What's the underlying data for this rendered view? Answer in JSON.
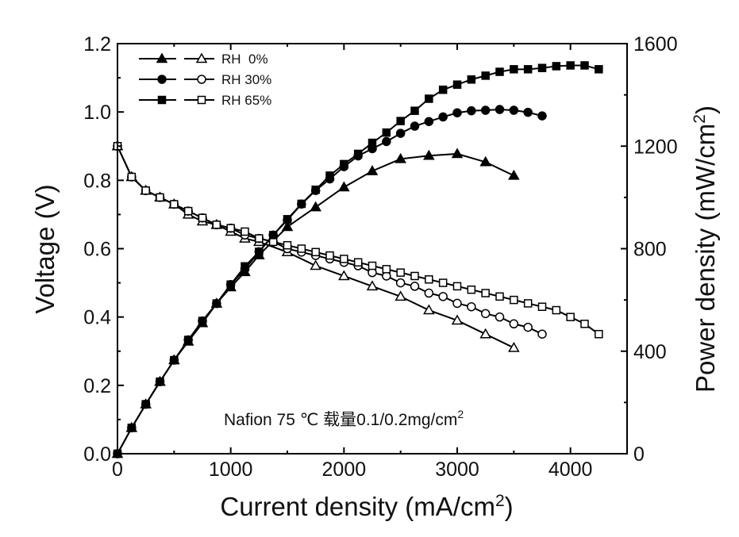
{
  "chart_data": {
    "type": "line",
    "xlabel": "Current density (mA/cm",
    "xlabel_sup": "2",
    "xlabel_end": ")",
    "ylabel": "Voltage (V)",
    "y2label": "Power density (mW/cm",
    "y2label_sup": "2",
    "y2label_end": ")",
    "xlim": [
      0,
      4500
    ],
    "ylim": [
      0,
      1.2
    ],
    "y2lim": [
      0,
      1600
    ],
    "x_ticks": [
      0,
      1000,
      2000,
      3000,
      4000
    ],
    "x_tick_labels": [
      "0",
      "1000",
      "2000",
      "3000",
      "4000"
    ],
    "y_ticks": [
      0.0,
      0.2,
      0.4,
      0.6,
      0.8,
      1.0,
      1.2
    ],
    "y_tick_labels": [
      "0.0",
      "0.2",
      "0.4",
      "0.6",
      "0.8",
      "1.0",
      "1.2"
    ],
    "y2_ticks": [
      0,
      400,
      800,
      1200,
      1600
    ],
    "y2_tick_labels": [
      "0",
      "400",
      "800",
      "1200",
      "1600"
    ],
    "grid": false,
    "legend_position": "top-left",
    "annotation": {
      "main": "Nafion 75 ℃ 载量0.1/0.2mg/cm",
      "sup": "2"
    },
    "series": [
      {
        "name": "RH  0%",
        "marker": "triangle",
        "x": [
          0,
          125,
          250,
          375,
          500,
          625,
          750,
          875,
          1000,
          1125,
          1250,
          1500,
          1750,
          2000,
          2250,
          2500,
          2750,
          3000,
          3250,
          3500
        ],
        "voltage": [
          0.9,
          0.81,
          0.77,
          0.75,
          0.73,
          0.7,
          0.68,
          0.67,
          0.65,
          0.63,
          0.62,
          0.59,
          0.55,
          0.52,
          0.49,
          0.46,
          0.42,
          0.39,
          0.35,
          0.31
        ],
        "power": [
          0,
          101,
          193,
          281,
          365,
          438,
          510,
          586,
          650,
          709,
          775,
          885,
          962,
          1040,
          1103,
          1150,
          1163,
          1170,
          1138,
          1085
        ]
      },
      {
        "name": "RH 30%",
        "marker": "circle",
        "x": [
          0,
          125,
          250,
          375,
          500,
          625,
          750,
          875,
          1000,
          1125,
          1250,
          1375,
          1500,
          1625,
          1750,
          1875,
          2000,
          2125,
          2250,
          2375,
          2500,
          2625,
          2750,
          2875,
          3000,
          3125,
          3250,
          3375,
          3500,
          3625,
          3750
        ],
        "voltage": [
          0.9,
          0.81,
          0.77,
          0.75,
          0.73,
          0.71,
          0.69,
          0.67,
          0.66,
          0.64,
          0.63,
          0.62,
          0.6,
          0.59,
          0.58,
          0.57,
          0.56,
          0.55,
          0.53,
          0.52,
          0.5,
          0.49,
          0.47,
          0.46,
          0.44,
          0.43,
          0.41,
          0.4,
          0.38,
          0.37,
          0.35
        ],
        "power": [
          0,
          101,
          193,
          281,
          365,
          444,
          518,
          586,
          660,
          720,
          788,
          853,
          912,
          974,
          1027,
          1072,
          1120,
          1162,
          1190,
          1218,
          1250,
          1278,
          1296,
          1314,
          1330,
          1338,
          1340,
          1343,
          1340,
          1332,
          1318
        ]
      },
      {
        "name": "RH 65%",
        "marker": "square",
        "x": [
          0,
          125,
          250,
          375,
          500,
          625,
          750,
          875,
          1000,
          1125,
          1250,
          1375,
          1500,
          1625,
          1750,
          1875,
          2000,
          2125,
          2250,
          2375,
          2500,
          2625,
          2750,
          2875,
          3000,
          3125,
          3250,
          3375,
          3500,
          3625,
          3750,
          3875,
          4000,
          4125,
          4250
        ],
        "voltage": [
          0.9,
          0.81,
          0.77,
          0.75,
          0.73,
          0.71,
          0.69,
          0.67,
          0.66,
          0.65,
          0.63,
          0.62,
          0.61,
          0.6,
          0.59,
          0.58,
          0.57,
          0.56,
          0.55,
          0.54,
          0.53,
          0.52,
          0.51,
          0.5,
          0.49,
          0.48,
          0.47,
          0.46,
          0.45,
          0.44,
          0.43,
          0.42,
          0.4,
          0.38,
          0.35
        ],
        "power": [
          0,
          101,
          193,
          281,
          365,
          444,
          518,
          586,
          660,
          731,
          788,
          853,
          915,
          975,
          1030,
          1085,
          1130,
          1170,
          1213,
          1253,
          1298,
          1338,
          1385,
          1420,
          1440,
          1460,
          1475,
          1490,
          1500,
          1500,
          1505,
          1512,
          1515,
          1515,
          1500
        ]
      }
    ]
  }
}
